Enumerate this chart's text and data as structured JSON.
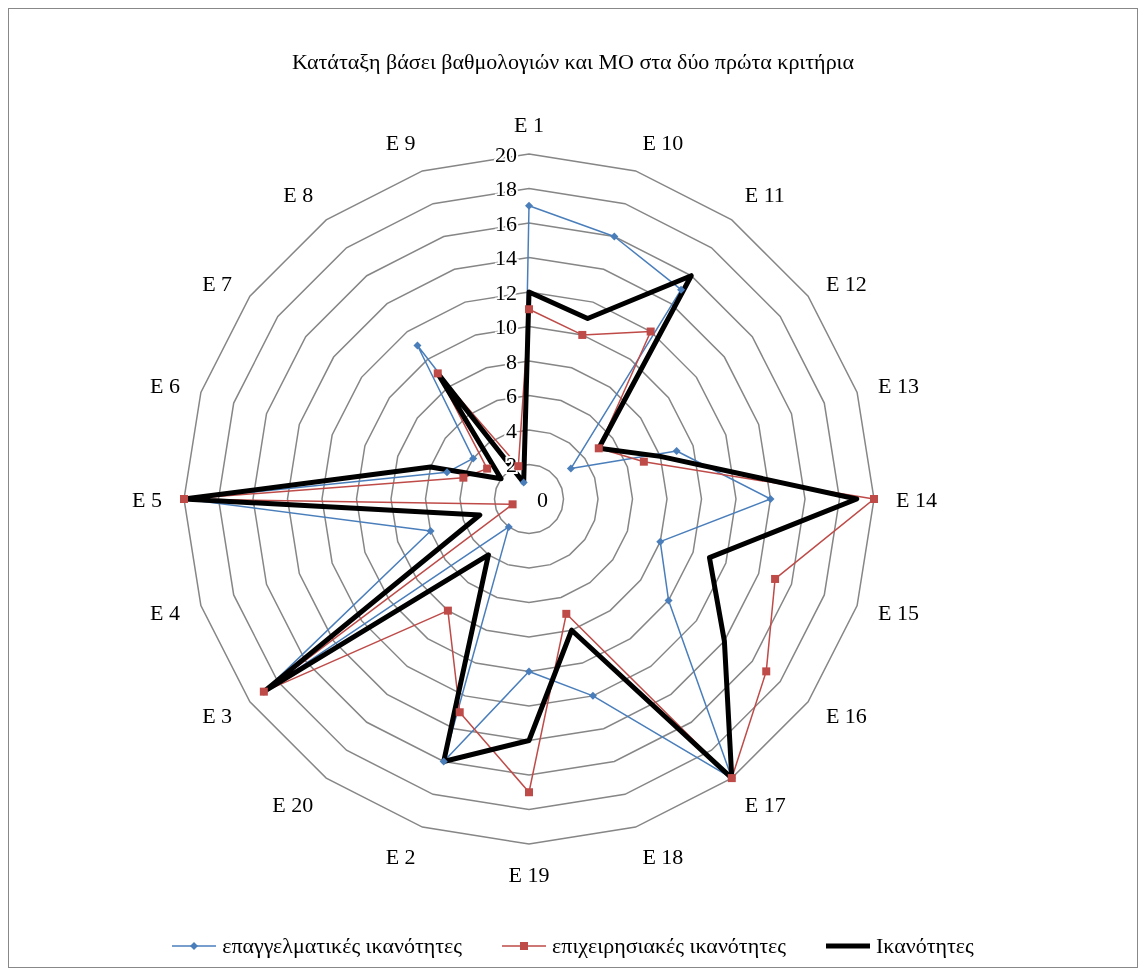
{
  "chart_data": {
    "type": "radar",
    "title": "Κατάταξη βάσει βαθμολογιών και ΜΟ στα δύο πρώτα κριτήρια",
    "categories": [
      "E 1",
      "E 10",
      "E 11",
      "E 12",
      "E 13",
      "E 14",
      "E 15",
      "E 16",
      "E 17",
      "E 18",
      "E 19",
      "E 2",
      "E 20",
      "E 3",
      "E 4",
      "E 5",
      "E 6",
      "E 7",
      "E 8",
      "E 9"
    ],
    "ylim": [
      0,
      20
    ],
    "yticks": [
      0,
      2,
      4,
      6,
      8,
      10,
      12,
      14,
      16,
      18,
      20
    ],
    "grid": true,
    "legend": "bottom",
    "series": [
      {
        "name": "επαγγελματικές ικανότητες",
        "color": "#4a7ebb",
        "marker": "diamond",
        "values": [
          17,
          16,
          15,
          3,
          9,
          14,
          8,
          10,
          20,
          12,
          10,
          16,
          2,
          19,
          6,
          20,
          5,
          4,
          11,
          1
        ]
      },
      {
        "name": "επιχειρησιακές ικανότητες",
        "color": "#be4b48",
        "marker": "square",
        "values": [
          11,
          10,
          12,
          5,
          7,
          20,
          15,
          17,
          20,
          7,
          17,
          13,
          8,
          19,
          1,
          20,
          4,
          3,
          9,
          2
        ]
      },
      {
        "name": "Ικανότητες",
        "color": "#000000",
        "marker": "none",
        "values": [
          12,
          11,
          16,
          5,
          8,
          19,
          11,
          14,
          20,
          8,
          14,
          16,
          4,
          19,
          3,
          20,
          6,
          2,
          9,
          1
        ]
      }
    ]
  }
}
